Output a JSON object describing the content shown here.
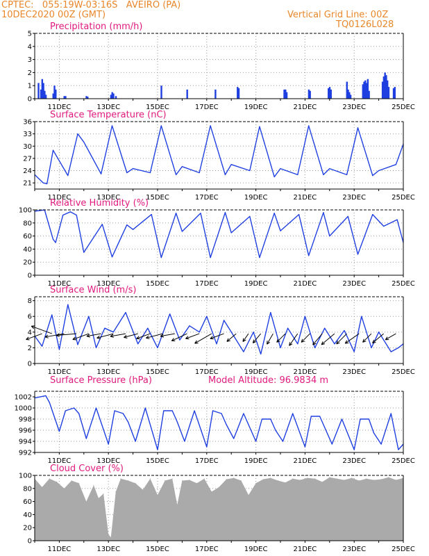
{
  "header": {
    "line1_left": "CPTEC:   055:19W-03:16S   AVEIRO (PA)",
    "line2_left": "10DEC2020 00Z (GMT)",
    "line1_right": "Vertical Grid Line: 00Z",
    "line2_right": "TQ0126L028"
  },
  "colors": {
    "header": "#e8872a",
    "title": "#e0197d",
    "series": "#1f3fe0",
    "cloud": "#aaaaaa",
    "grid": "#9a9a9a",
    "wind_arrow": "#000000"
  },
  "x_tick_labels": [
    "11DEC",
    "13DEC",
    "15DEC",
    "17DEC",
    "19DEC",
    "21DEC",
    "23DEC",
    "25DEC"
  ],
  "x_tick_days": [
    11,
    13,
    15,
    17,
    19,
    21,
    23,
    25
  ],
  "x_range": [
    10,
    25
  ],
  "chart_data": [
    {
      "type": "bar",
      "title": "Precipitation (mm/h)",
      "ylim": [
        0,
        5
      ],
      "yticks": [
        0,
        1,
        2,
        3,
        4,
        5
      ],
      "x": [
        10.15,
        10.25,
        10.3,
        10.35,
        10.4,
        10.45,
        10.75,
        10.8,
        10.85,
        11.2,
        11.25,
        12.1,
        12.15,
        13.1,
        13.15,
        13.2,
        13.3,
        15.15,
        16.2,
        17.35,
        18.25,
        18.3,
        20.15,
        20.2,
        20.25,
        21.15,
        21.2,
        21.95,
        22.0,
        22.05,
        22.7,
        22.75,
        22.8,
        22.85,
        23.35,
        23.4,
        23.45,
        23.5,
        23.55,
        23.6,
        24.15,
        24.2,
        24.25,
        24.3,
        24.35,
        24.4,
        24.6,
        24.65
      ],
      "values": [
        1.2,
        0.7,
        1.5,
        1.2,
        0.6,
        0.3,
        0.4,
        1.0,
        0.7,
        0.2,
        0.2,
        0.2,
        0.15,
        0.3,
        0.5,
        0.4,
        0.2,
        1.0,
        0.7,
        0.7,
        0.9,
        0.8,
        0.7,
        0.7,
        0.5,
        0.7,
        0.6,
        0.8,
        0.9,
        0.7,
        1.3,
        0.7,
        0.5,
        0.3,
        1.1,
        1.3,
        1.4,
        1.2,
        1.5,
        0.6,
        1.3,
        1.7,
        2.0,
        1.8,
        1.4,
        0.9,
        0.8,
        0.9
      ]
    },
    {
      "type": "line",
      "title": "Surface Temperature (nC)",
      "ylim": [
        19.5,
        36
      ],
      "yticks": [
        21,
        24,
        27,
        30,
        33,
        36
      ],
      "x": [
        10.0,
        10.35,
        10.5,
        10.75,
        11.35,
        11.75,
        12.0,
        12.7,
        13.15,
        13.75,
        14.0,
        14.7,
        15.15,
        15.75,
        16.0,
        16.7,
        17.15,
        17.75,
        18.0,
        18.75,
        19.15,
        19.75,
        20.0,
        20.7,
        21.15,
        21.75,
        22.0,
        22.7,
        23.15,
        23.75,
        24.0,
        24.7,
        25.0
      ],
      "values": [
        23.0,
        21.0,
        20.8,
        29.0,
        22.8,
        33.0,
        31.0,
        23.2,
        35.0,
        23.5,
        24.5,
        23.5,
        35.0,
        23.0,
        25.0,
        23.5,
        35.0,
        23.0,
        25.5,
        24.0,
        34.8,
        22.5,
        24.5,
        23.0,
        35.0,
        23.0,
        24.5,
        23.0,
        34.5,
        22.8,
        24.0,
        25.5,
        30.5
      ]
    },
    {
      "type": "line",
      "title": "Relative Humidity (%)",
      "ylim": [
        0,
        100
      ],
      "yticks": [
        0,
        20,
        40,
        60,
        80,
        100
      ],
      "x": [
        10.0,
        10.4,
        10.75,
        10.85,
        11.15,
        11.45,
        11.7,
        12.0,
        12.75,
        13.15,
        13.75,
        14.0,
        14.75,
        15.15,
        15.75,
        16.0,
        16.75,
        17.15,
        17.75,
        18.0,
        18.75,
        19.15,
        19.75,
        20.0,
        20.75,
        21.15,
        21.75,
        22.0,
        22.75,
        23.15,
        23.75,
        24.2,
        24.75,
        25.0
      ],
      "values": [
        98,
        100,
        55,
        50,
        92,
        97,
        92,
        35,
        78,
        28,
        77,
        70,
        93,
        27,
        95,
        67,
        95,
        27,
        96,
        65,
        90,
        27,
        95,
        68,
        93,
        30,
        96,
        60,
        90,
        32,
        93,
        75,
        85,
        50
      ]
    },
    {
      "type": "line",
      "title": "Surface Wind (m/s)",
      "ylim": [
        0,
        8.5
      ],
      "yticks": [
        0,
        2,
        4,
        6,
        8
      ],
      "x": [
        10.0,
        10.3,
        10.7,
        11.0,
        11.35,
        11.75,
        12.2,
        12.5,
        12.85,
        13.2,
        13.7,
        14.2,
        14.6,
        15.0,
        15.5,
        15.9,
        16.3,
        16.7,
        17.0,
        17.4,
        17.7,
        18.0,
        18.5,
        18.9,
        19.2,
        19.6,
        20.0,
        20.3,
        20.7,
        21.0,
        21.4,
        21.8,
        22.2,
        22.6,
        23.0,
        23.3,
        23.7,
        24.0,
        24.5,
        24.8,
        25.0
      ],
      "values": [
        3.5,
        2.2,
        6.2,
        1.8,
        7.5,
        2.4,
        6.0,
        2.0,
        4.5,
        4.0,
        6.5,
        2.5,
        4.5,
        2.0,
        6.3,
        3.0,
        4.8,
        4.0,
        6.0,
        2.5,
        5.5,
        4.0,
        1.5,
        4.0,
        1.2,
        6.5,
        2.0,
        4.5,
        2.5,
        6.0,
        2.0,
        4.5,
        2.5,
        4.2,
        1.5,
        6.0,
        2.0,
        4.0,
        1.5,
        2.0,
        2.5
      ]
    },
    {
      "type": "line",
      "title": "Surface Pressure (hPa)",
      "annotation": "Model Altitude: 96.9834 m",
      "ylim": [
        992,
        1003
      ],
      "yticks": [
        992,
        994,
        996,
        998,
        1000,
        1002
      ],
      "x": [
        10.0,
        10.45,
        10.6,
        11.0,
        11.25,
        11.6,
        11.8,
        12.1,
        12.5,
        13.0,
        13.25,
        13.6,
        13.8,
        14.1,
        14.5,
        15.0,
        15.25,
        15.6,
        15.8,
        16.1,
        16.5,
        17.0,
        17.25,
        17.6,
        17.8,
        18.1,
        18.5,
        19.0,
        19.25,
        19.6,
        19.8,
        20.1,
        20.5,
        21.0,
        21.25,
        21.6,
        21.8,
        22.1,
        22.5,
        23.0,
        23.25,
        23.6,
        23.8,
        24.1,
        24.5,
        24.8,
        25.0
      ],
      "values": [
        1001.8,
        1002.2,
        1001.0,
        995.8,
        999.5,
        1000.0,
        999.0,
        994.5,
        1000.0,
        993.5,
        999.5,
        999.0,
        997.5,
        994.0,
        1000.0,
        992.5,
        999.5,
        999.5,
        997.5,
        994.0,
        999.5,
        993.0,
        999.5,
        999.0,
        997.0,
        994.5,
        999.0,
        994.0,
        998.0,
        998.0,
        996.0,
        994.0,
        999.0,
        993.0,
        998.5,
        998.5,
        996.5,
        993.5,
        998.0,
        992.5,
        998.0,
        998.0,
        995.5,
        993.5,
        999.0,
        992.5,
        993.5
      ]
    },
    {
      "type": "area",
      "title": "Cloud Cover (%)",
      "ylim": [
        0,
        100
      ],
      "yticks": [
        0,
        20,
        40,
        60,
        80,
        100
      ],
      "x": [
        10.0,
        10.3,
        10.6,
        10.9,
        11.2,
        11.5,
        11.8,
        12.1,
        12.4,
        12.6,
        12.8,
        13.0,
        13.1,
        13.3,
        13.5,
        13.8,
        14.1,
        14.4,
        14.7,
        15.0,
        15.3,
        15.6,
        15.8,
        16.0,
        16.3,
        16.6,
        16.9,
        17.2,
        17.5,
        17.8,
        18.1,
        18.4,
        18.7,
        19.0,
        19.3,
        19.6,
        19.9,
        20.2,
        20.5,
        20.8,
        21.1,
        21.4,
        21.7,
        22.0,
        22.3,
        22.6,
        22.9,
        23.2,
        23.5,
        23.8,
        24.1,
        24.4,
        24.7,
        25.0
      ],
      "values": [
        95,
        82,
        95,
        90,
        80,
        92,
        88,
        60,
        85,
        65,
        72,
        10,
        5,
        75,
        95,
        92,
        88,
        78,
        95,
        70,
        92,
        95,
        55,
        92,
        93,
        88,
        95,
        75,
        82,
        94,
        96,
        92,
        70,
        88,
        94,
        96,
        92,
        89,
        95,
        93,
        96,
        95,
        90,
        97,
        95,
        93,
        96,
        92,
        95,
        93,
        94,
        97,
        93,
        96
      ]
    }
  ],
  "wind_arrows": {
    "y_level": 3.8,
    "x": [
      10.3,
      10.7,
      11.2,
      11.7,
      12.2,
      12.7,
      13.2,
      13.7,
      14.2,
      14.7,
      15.2,
      15.7,
      16.2,
      16.7,
      17.2,
      17.7,
      18.2,
      18.7,
      19.2,
      19.7,
      20.2,
      20.7,
      21.2,
      21.7,
      22.2,
      22.7,
      23.2,
      23.7,
      24.2,
      24.7
    ],
    "dir_deg": [
      200,
      160,
      190,
      185,
      200,
      190,
      195,
      190,
      195,
      200,
      195,
      190,
      205,
      200,
      210,
      200,
      220,
      235,
      230,
      240,
      225,
      235,
      225,
      230,
      220,
      225,
      215,
      225,
      220,
      210
    ],
    "speed": [
      3.5,
      4.5,
      4.0,
      4.2,
      3.5,
      3.0,
      3.5,
      3.2,
      3.0,
      3.0,
      3.5,
      3.0,
      3.5,
      3.0,
      4.0,
      3.0,
      2.5,
      2.0,
      2.5,
      2.5,
      2.5,
      3.0,
      2.5,
      3.0,
      3.5,
      3.0,
      3.5,
      2.5,
      3.0,
      2.5
    ]
  }
}
